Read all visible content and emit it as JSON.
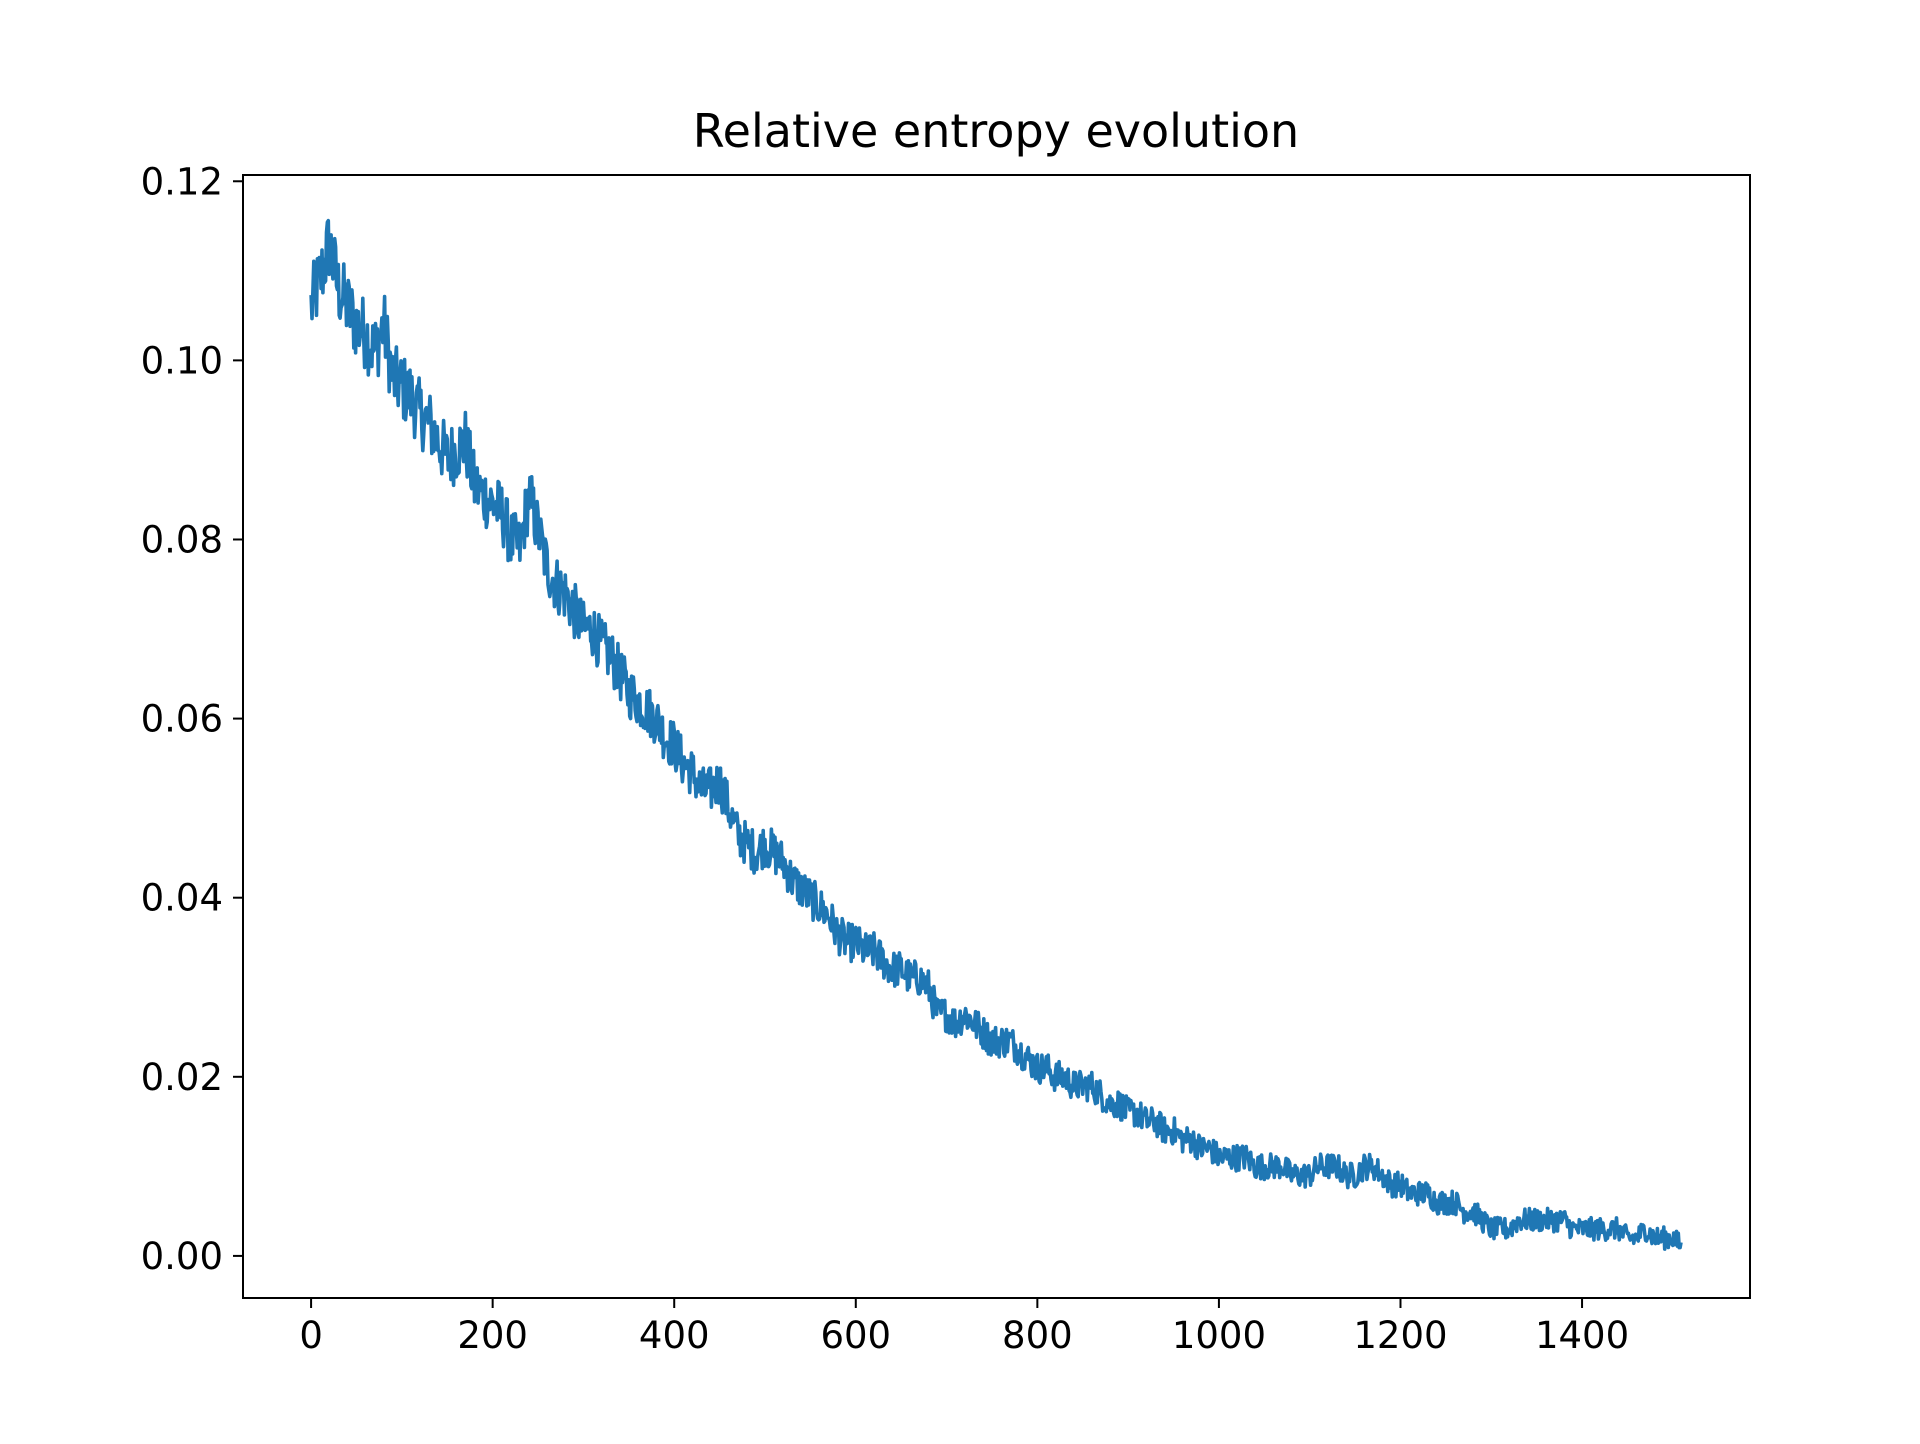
{
  "chart_data": {
    "type": "line",
    "title": "Relative entropy evolution",
    "xlabel": "",
    "ylabel": "",
    "xlim": [
      -75,
      1585
    ],
    "ylim": [
      -0.0047,
      0.1207
    ],
    "x_ticks": [
      0,
      200,
      400,
      600,
      800,
      1000,
      1200,
      1400
    ],
    "y_ticks": [
      0.0,
      0.02,
      0.04,
      0.06,
      0.08,
      0.1,
      0.12
    ],
    "x_tick_labels": [
      "0",
      "200",
      "400",
      "600",
      "800",
      "1000",
      "1200",
      "1400"
    ],
    "y_tick_labels": [
      "0.00",
      "0.02",
      "0.04",
      "0.06",
      "0.08",
      "0.10",
      "0.12"
    ],
    "grid": false,
    "legend": "none",
    "n_points": 1510,
    "series": [
      {
        "color": "#1f77b4",
        "x": [
          0,
          10,
          20,
          30,
          40,
          50,
          60,
          70,
          80,
          90,
          100,
          110,
          120,
          130,
          140,
          150,
          160,
          170,
          180,
          190,
          200,
          210,
          220,
          230,
          240,
          250,
          260,
          270,
          280,
          290,
          300,
          310,
          320,
          330,
          340,
          350,
          360,
          370,
          380,
          390,
          400,
          410,
          420,
          430,
          440,
          450,
          460,
          470,
          480,
          490,
          500,
          510,
          520,
          530,
          540,
          550,
          560,
          570,
          580,
          590,
          600,
          610,
          620,
          630,
          640,
          650,
          660,
          670,
          680,
          690,
          700,
          710,
          720,
          730,
          740,
          750,
          760,
          770,
          780,
          790,
          800,
          810,
          820,
          830,
          840,
          850,
          860,
          870,
          880,
          890,
          900,
          910,
          920,
          930,
          940,
          950,
          960,
          970,
          980,
          990,
          1000,
          1010,
          1020,
          1030,
          1040,
          1050,
          1060,
          1070,
          1080,
          1090,
          1100,
          1110,
          1120,
          1130,
          1140,
          1150,
          1160,
          1170,
          1180,
          1190,
          1200,
          1210,
          1220,
          1230,
          1240,
          1250,
          1260,
          1270,
          1280,
          1290,
          1300,
          1310,
          1320,
          1330,
          1340,
          1350,
          1360,
          1370,
          1380,
          1390,
          1400,
          1410,
          1420,
          1430,
          1440,
          1450,
          1460,
          1470,
          1480,
          1490,
          1500,
          1510
        ],
        "values": [
          0.106,
          0.109,
          0.113,
          0.108,
          0.106,
          0.104,
          0.103,
          0.101,
          0.104,
          0.098,
          0.097,
          0.096,
          0.094,
          0.093,
          0.091,
          0.089,
          0.09,
          0.091,
          0.086,
          0.085,
          0.084,
          0.083,
          0.08,
          0.079,
          0.085,
          0.081,
          0.077,
          0.075,
          0.074,
          0.072,
          0.07,
          0.07,
          0.068,
          0.067,
          0.065,
          0.063,
          0.062,
          0.061,
          0.06,
          0.058,
          0.057,
          0.055,
          0.054,
          0.052,
          0.052,
          0.053,
          0.05,
          0.047,
          0.046,
          0.045,
          0.046,
          0.045,
          0.044,
          0.042,
          0.041,
          0.04,
          0.039,
          0.038,
          0.036,
          0.035,
          0.035,
          0.034,
          0.034,
          0.033,
          0.032,
          0.032,
          0.031,
          0.031,
          0.03,
          0.027,
          0.027,
          0.026,
          0.027,
          0.026,
          0.025,
          0.024,
          0.024,
          0.024,
          0.023,
          0.022,
          0.021,
          0.021,
          0.02,
          0.02,
          0.019,
          0.019,
          0.019,
          0.018,
          0.017,
          0.017,
          0.016,
          0.016,
          0.015,
          0.015,
          0.014,
          0.014,
          0.013,
          0.013,
          0.012,
          0.012,
          0.011,
          0.011,
          0.011,
          0.011,
          0.01,
          0.01,
          0.01,
          0.01,
          0.009,
          0.009,
          0.009,
          0.01,
          0.01,
          0.01,
          0.009,
          0.009,
          0.01,
          0.01,
          0.009,
          0.008,
          0.008,
          0.007,
          0.007,
          0.007,
          0.006,
          0.006,
          0.006,
          0.005,
          0.005,
          0.004,
          0.003,
          0.003,
          0.003,
          0.004,
          0.004,
          0.004,
          0.004,
          0.004,
          0.004,
          0.003,
          0.003,
          0.003,
          0.003,
          0.003,
          0.003,
          0.002,
          0.002,
          0.003,
          0.002,
          0.002,
          0.002,
          0.001
        ]
      }
    ]
  }
}
